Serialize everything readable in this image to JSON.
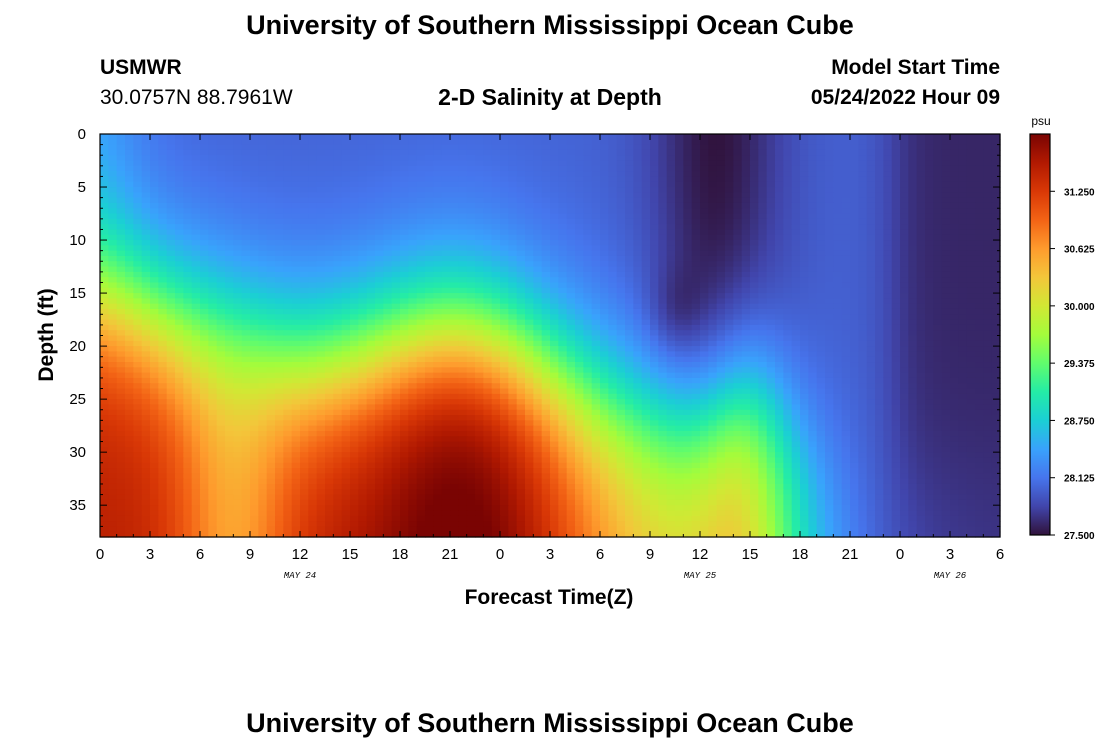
{
  "header": {
    "title": "University of Southern Mississippi Ocean Cube",
    "station": "USMWR",
    "coords": "30.0757N  88.7961W",
    "subtitle": "2-D Salinity at Depth",
    "model_start_label": "Model Start Time",
    "model_start_value": "05/24/2022 Hour 09"
  },
  "footer": {
    "title": "University of Southern Mississippi Ocean Cube"
  },
  "chart_data": {
    "type": "heatmap",
    "xlabel": "Forecast Time(Z)",
    "ylabel": "Depth (ft)",
    "x_tick_labels": [
      "0",
      "3",
      "6",
      "9",
      "12",
      "15",
      "18",
      "21",
      "0",
      "3",
      "6",
      "9",
      "12",
      "15",
      "18",
      "21",
      "0",
      "3",
      "6"
    ],
    "x_range_hours": [
      0,
      54
    ],
    "day_labels": [
      {
        "label": "MAY 24",
        "at_hour": 12
      },
      {
        "label": "MAY 25",
        "at_hour": 36
      },
      {
        "label": "MAY 26",
        "at_hour": 51
      }
    ],
    "y_tick_labels": [
      "0",
      "5",
      "10",
      "15",
      "20",
      "25",
      "30",
      "35"
    ],
    "y_range": [
      0,
      38
    ],
    "y_reversed": true,
    "colorbar": {
      "unit": "psu",
      "min": 27.5,
      "max": 31.875,
      "tick_labels": [
        "31.250",
        "30.625",
        "30.000",
        "29.375",
        "28.750",
        "28.125",
        "27.500"
      ],
      "tick_values": [
        31.25,
        30.625,
        30.0,
        29.375,
        28.75,
        28.125,
        27.5
      ],
      "colors": [
        "#30123b",
        "#4145ab",
        "#4675ed",
        "#39a2fc",
        "#1bcfd4",
        "#24eca6",
        "#61fc6c",
        "#a4fc3b",
        "#d1e834",
        "#f3c63a",
        "#fe9b2d",
        "#f36315",
        "#d93806",
        "#b11901",
        "#7a0403"
      ]
    }
  }
}
